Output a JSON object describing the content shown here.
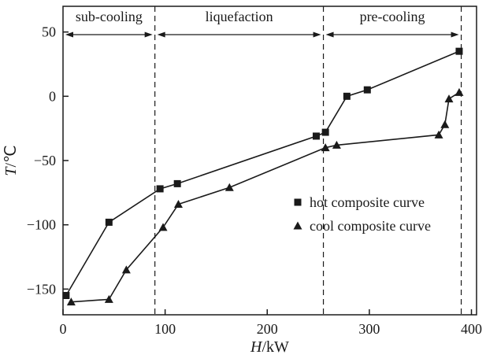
{
  "colors": {
    "ink": "#1a1a1a",
    "background": "#ffffff"
  },
  "chart_data": {
    "type": "line",
    "title": "",
    "xlabel": "H/kW",
    "ylabel": "T/℃",
    "xlim": [
      0,
      405
    ],
    "ylim": [
      -170,
      70
    ],
    "xticks": [
      0,
      100,
      200,
      300,
      400
    ],
    "yticks": [
      -150,
      -100,
      -50,
      0,
      50
    ],
    "grid": false,
    "legend_position": "middle-right",
    "dashed_vlines": [
      90,
      255,
      390
    ],
    "regions": [
      {
        "label": "sub-cooling",
        "from": 0,
        "to": 90
      },
      {
        "label": "liquefaction",
        "from": 90,
        "to": 255
      },
      {
        "label": "pre-cooling",
        "from": 255,
        "to": 390
      }
    ],
    "series": [
      {
        "name": "hot composite curve",
        "marker": "square",
        "points": [
          [
            3,
            -155
          ],
          [
            45,
            -98
          ],
          [
            95,
            -72
          ],
          [
            112,
            -68
          ],
          [
            248,
            -31
          ],
          [
            257,
            -28
          ],
          [
            278,
            0
          ],
          [
            298,
            5
          ],
          [
            388,
            35
          ]
        ]
      },
      {
        "name": "cool composite curve",
        "marker": "triangle",
        "points": [
          [
            8,
            -160
          ],
          [
            45,
            -158
          ],
          [
            62,
            -135
          ],
          [
            98,
            -102
          ],
          [
            113,
            -84
          ],
          [
            163,
            -71
          ],
          [
            257,
            -40
          ],
          [
            268,
            -38
          ],
          [
            368,
            -30
          ],
          [
            374,
            -22
          ],
          [
            378,
            -2
          ],
          [
            388,
            3
          ]
        ]
      }
    ]
  }
}
